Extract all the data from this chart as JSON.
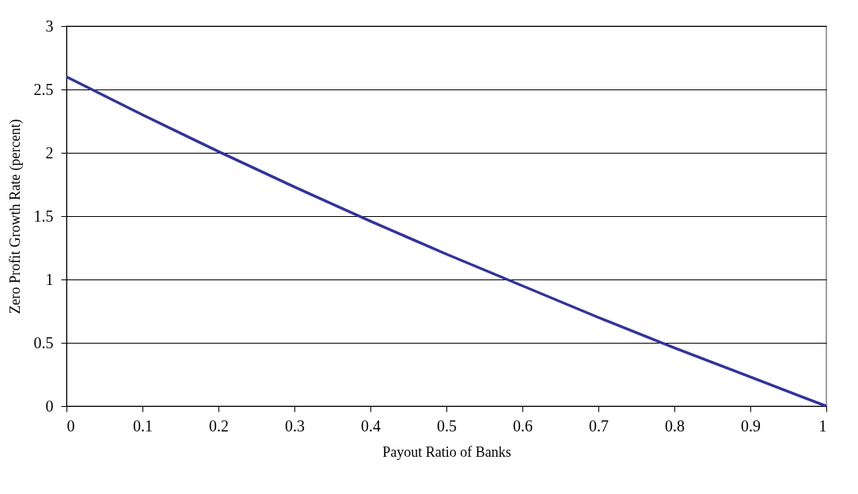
{
  "chart_data": {
    "type": "line",
    "xlabel": "Payout Ratio of Banks",
    "ylabel": "Zero Profit Growth Rate (percent)",
    "x": [
      0,
      0.1,
      0.2,
      0.3,
      0.4,
      0.5,
      0.6,
      0.7,
      0.8,
      0.9,
      1
    ],
    "series": [
      {
        "color": "#333399",
        "values": [
          2.6,
          2.3,
          2.01,
          1.73,
          1.46,
          1.2,
          0.95,
          0.7,
          0.46,
          0.23,
          0
        ]
      }
    ],
    "xlim": [
      0,
      1
    ],
    "xticks": [
      0,
      0.1,
      0.2,
      0.3,
      0.4,
      0.5,
      0.6,
      0.7,
      0.8,
      0.9,
      1
    ],
    "ylim": [
      0,
      3
    ],
    "yticks": [
      0,
      0.5,
      1,
      1.5,
      2,
      2.5,
      3
    ],
    "grid": "y",
    "marker": "none",
    "line_style": "solid"
  }
}
